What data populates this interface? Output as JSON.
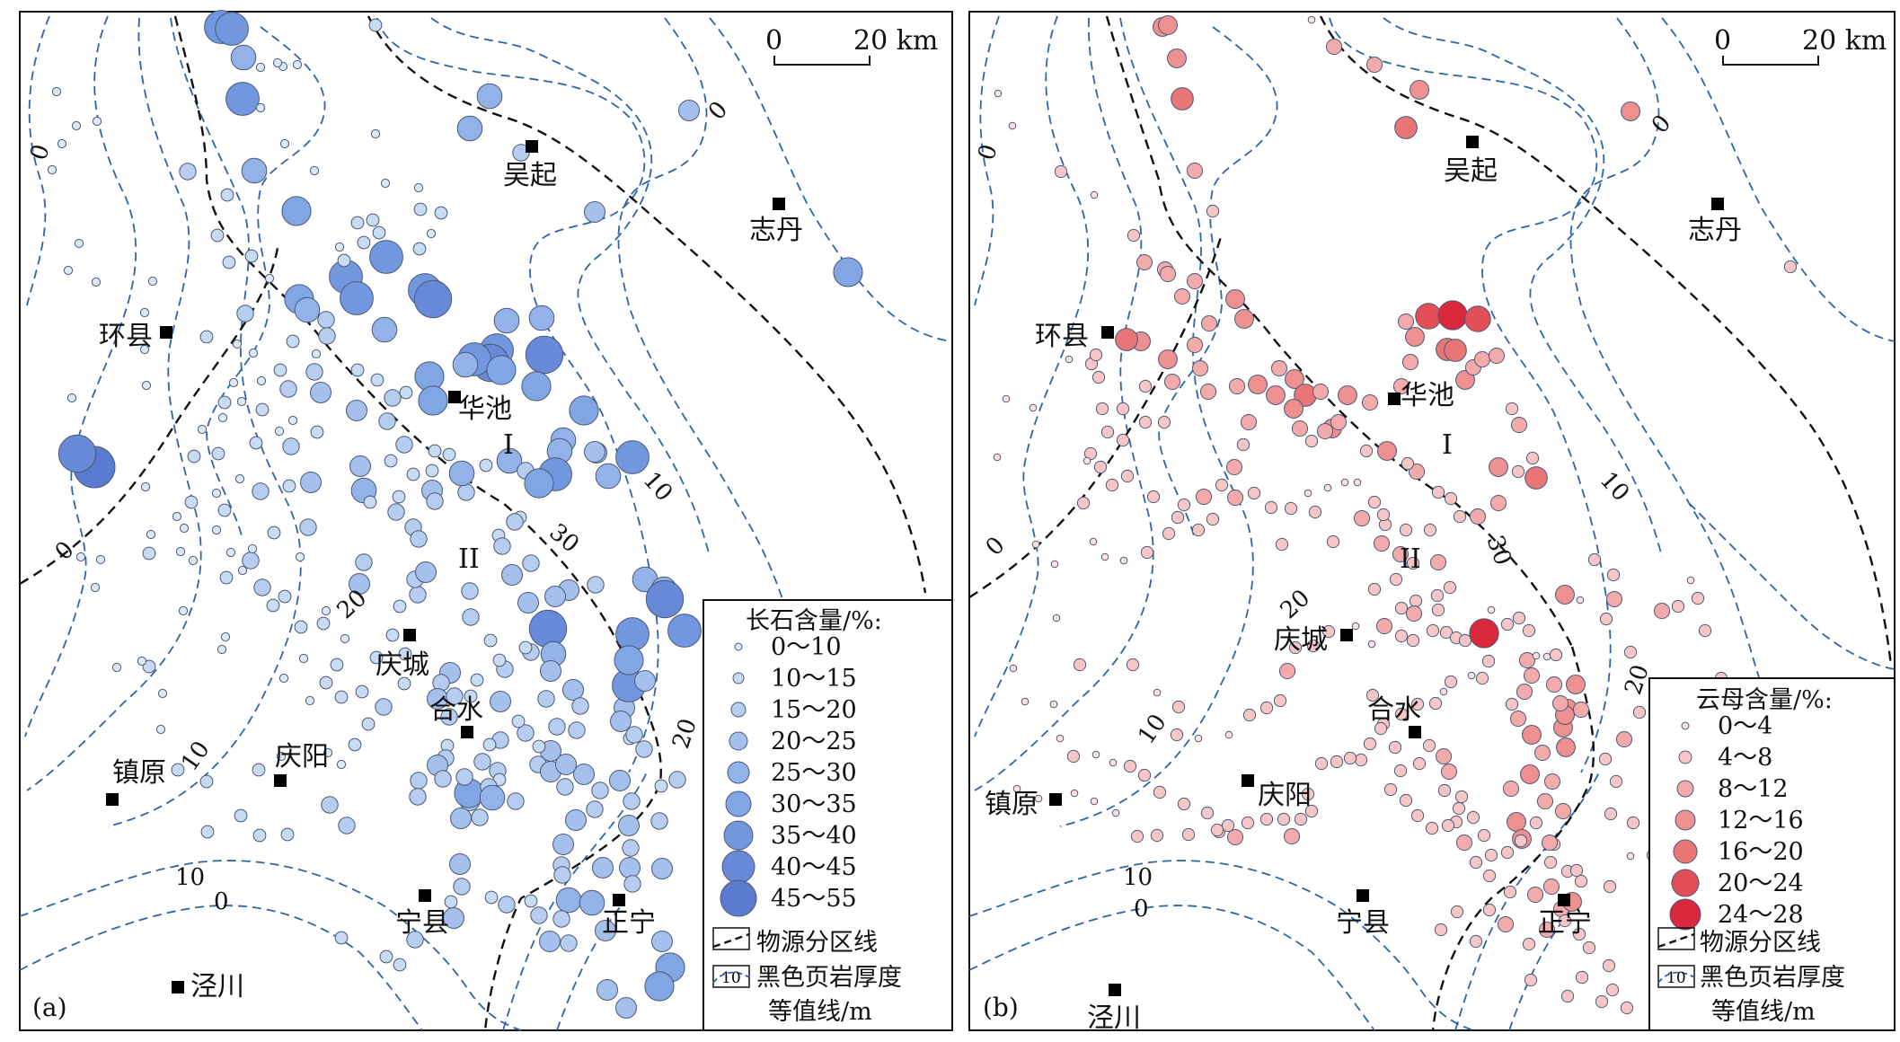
{
  "panels": [
    {
      "id": "a",
      "letter": "(a)",
      "scale_bar": {
        "start": "0",
        "end": "20 km"
      },
      "legend_title": "长石含量/%:",
      "classes": [
        "0～10",
        "10～15",
        "15～20",
        "20～25",
        "25～30",
        "30～35",
        "35～40",
        "40～45",
        "45～55"
      ],
      "fill_colors": [
        "#dde8f7",
        "#c9daf3",
        "#b7cdf0",
        "#a5c0ec",
        "#93b2e8",
        "#82a5e4",
        "#7397df",
        "#6789d8",
        "#5a7bd0"
      ],
      "divide_label": "物源分区线",
      "contour_label_line1": "黑色页岩厚度",
      "contour_label_line2": "等值线/m",
      "contour_swatch": "10",
      "cities": [
        {
          "name": "吴起"
        },
        {
          "name": "志丹"
        },
        {
          "name": "环县"
        },
        {
          "name": "华池"
        },
        {
          "name": "庆城"
        },
        {
          "name": "合水"
        },
        {
          "name": "镇原"
        },
        {
          "name": "庆阳"
        },
        {
          "name": "宁县"
        },
        {
          "name": "正宁"
        },
        {
          "name": "泾川"
        }
      ],
      "zones": [
        "I",
        "II"
      ],
      "contour_values": [
        "0",
        "0",
        "0",
        "0",
        "10",
        "10",
        "10",
        "20",
        "20",
        "30",
        "0"
      ]
    },
    {
      "id": "b",
      "letter": "(b)",
      "scale_bar": {
        "start": "0",
        "end": "20 km"
      },
      "legend_title": "云母含量/%:",
      "classes": [
        "0～4",
        "4～8",
        "8～12",
        "12～16",
        "16～20",
        "20～24",
        "24～28"
      ],
      "fill_colors": [
        "#fbe0e0",
        "#f6c6c6",
        "#f2aaaa",
        "#ee9090",
        "#e97676",
        "#e34f57",
        "#d9273b"
      ],
      "divide_label": "物源分区线",
      "contour_label_line1": "黑色页岩厚度",
      "contour_label_line2": "等值线/m",
      "contour_swatch": "10",
      "cities": [
        {
          "name": "吴起"
        },
        {
          "name": "志丹"
        },
        {
          "name": "环县"
        },
        {
          "name": "华池"
        },
        {
          "name": "庆城"
        },
        {
          "name": "合水"
        },
        {
          "name": "镇原"
        },
        {
          "name": "庆阳"
        },
        {
          "name": "宁县"
        },
        {
          "name": "正宁"
        },
        {
          "name": "泾川"
        }
      ],
      "zones": [
        "I",
        "II"
      ],
      "contour_values": [
        "0",
        "0",
        "0",
        "10",
        "10",
        "10",
        "20",
        "20",
        "30",
        "0"
      ]
    }
  ]
}
